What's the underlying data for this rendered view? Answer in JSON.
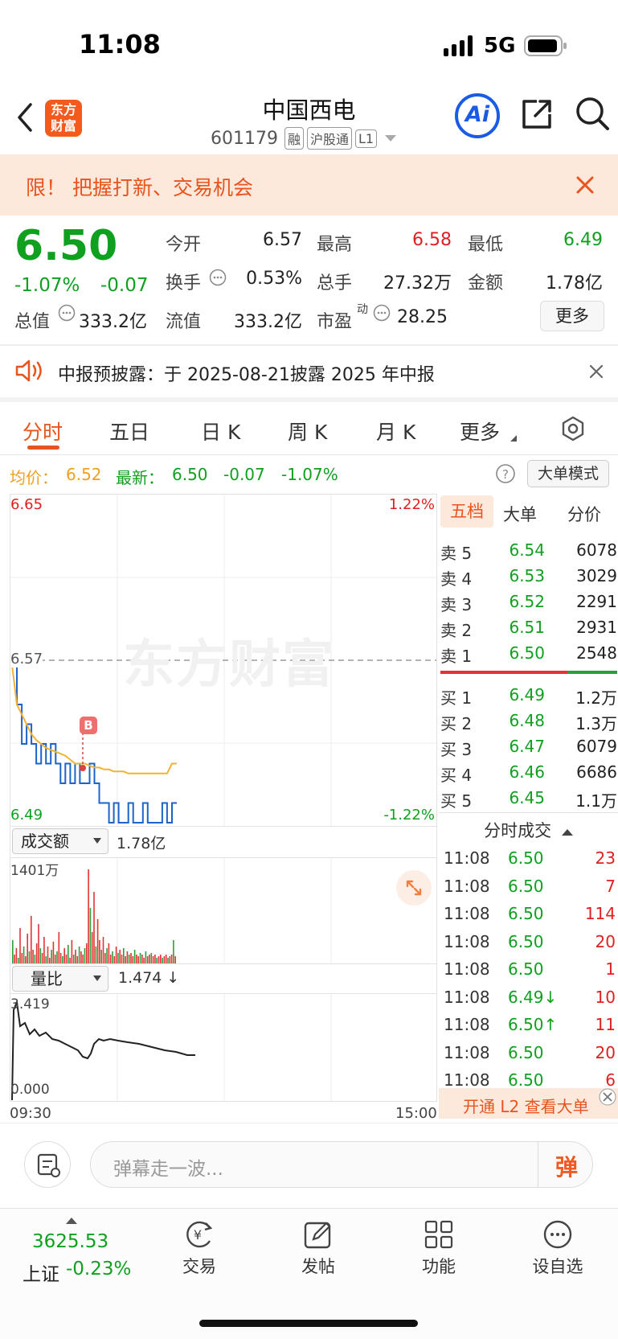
{
  "status_bar": {
    "time": "11:08",
    "network": "5G"
  },
  "header": {
    "logo_text_1": "东方",
    "logo_text_2": "财富",
    "title": "中国西电",
    "code": "601179",
    "badge_rong": "融",
    "badge_hgt": "沪股通",
    "badge_l1": "L1",
    "ai_label": "Ai"
  },
  "promo": {
    "text": "限！ 把握打新、交易机会"
  },
  "quote": {
    "price": "6.50",
    "change_pct": "-1.07%",
    "change": "-0.07",
    "open_label": "今开",
    "open": "6.57",
    "high_label": "最高",
    "high": "6.58",
    "low_label": "最低",
    "low": "6.49",
    "turnover_label": "换手",
    "turnover": "0.53%",
    "volume_label": "总手",
    "volume": "27.32万",
    "amount_label": "金额",
    "amount": "1.78亿",
    "mktcap_label": "总值",
    "mktcap": "333.2亿",
    "float_label": "流值",
    "float": "333.2亿",
    "pe_label": "市盈",
    "pe_sup": "动",
    "pe": "28.25",
    "more_button": "更多"
  },
  "notice": {
    "text": "中报预披露：于 2025-08-21披露 2025 年中报"
  },
  "tabs": [
    "分时",
    "五日",
    "日 K",
    "周 K",
    "月 K",
    "更多"
  ],
  "info_line": {
    "avg_label": "均价：",
    "avg": "6.52",
    "latest_label": "最新：",
    "latest": "6.50",
    "change": "-0.07",
    "change_pct": "-1.07%",
    "mode_button": "大单模式"
  },
  "chart_labels": {
    "top_left": "6.65",
    "top_right": "1.22%",
    "mid": "6.57",
    "bottom_left": "6.49",
    "bottom_right": "-1.22%",
    "watermark": "东方财富",
    "volume_selector": "成交额",
    "volume_value": "1.78亿",
    "volume_max": "1401万",
    "ratio_selector": "量比",
    "ratio_value": "1.474 ↓",
    "ratio_max": "3.419",
    "ratio_min": "0.000",
    "time_start": "09:30",
    "time_end": "15:00"
  },
  "chart_data": {
    "type": "line",
    "x_range": [
      "09:30",
      "15:00"
    ],
    "ylim": [
      6.49,
      6.65
    ],
    "series": [
      {
        "name": "最新",
        "values": [
          6.57,
          6.55,
          6.53,
          6.54,
          6.53,
          6.52,
          6.53,
          6.52,
          6.53,
          6.52,
          6.51,
          6.52,
          6.51,
          6.52,
          6.51,
          6.51,
          6.52,
          6.51,
          6.5,
          6.5,
          6.49,
          6.5,
          6.49,
          6.49,
          6.5,
          6.49,
          6.49,
          6.5,
          6.49,
          6.49,
          6.49,
          6.5,
          6.49,
          6.5,
          6.5
        ]
      },
      {
        "name": "均价",
        "values": [
          6.57,
          6.55,
          6.545,
          6.54,
          6.535,
          6.532,
          6.53,
          6.528,
          6.527,
          6.526,
          6.525,
          6.524,
          6.522,
          6.52,
          6.52,
          6.52,
          6.519,
          6.518,
          6.518,
          6.517,
          6.517,
          6.516,
          6.516,
          6.516,
          6.515,
          6.515,
          6.515,
          6.515,
          6.515,
          6.515,
          6.515,
          6.515,
          6.515,
          6.52,
          6.52
        ]
      }
    ]
  },
  "order_book": {
    "tabs": [
      "五档",
      "大单",
      "分价"
    ],
    "sell": [
      {
        "label": "卖 5",
        "price": "6.54",
        "vol": "6078"
      },
      {
        "label": "卖 4",
        "price": "6.53",
        "vol": "3029"
      },
      {
        "label": "卖 3",
        "price": "6.52",
        "vol": "2291"
      },
      {
        "label": "卖 2",
        "price": "6.51",
        "vol": "2931"
      },
      {
        "label": "卖 1",
        "price": "6.50",
        "vol": "2548"
      }
    ],
    "buy": [
      {
        "label": "买 1",
        "price": "6.49",
        "vol": "1.2万"
      },
      {
        "label": "买 2",
        "price": "6.48",
        "vol": "1.3万"
      },
      {
        "label": "买 3",
        "price": "6.47",
        "vol": "6079"
      },
      {
        "label": "买 4",
        "price": "6.46",
        "vol": "6686"
      },
      {
        "label": "买 5",
        "price": "6.45",
        "vol": "1.1万"
      }
    ]
  },
  "ticks": {
    "title": "分时成交",
    "rows": [
      {
        "time": "11:08",
        "price": "6.50",
        "vol": "23"
      },
      {
        "time": "11:08",
        "price": "6.50",
        "vol": "7"
      },
      {
        "time": "11:08",
        "price": "6.50",
        "vol": "114"
      },
      {
        "time": "11:08",
        "price": "6.50",
        "vol": "20"
      },
      {
        "time": "11:08",
        "price": "6.50",
        "vol": "1"
      },
      {
        "time": "11:08",
        "price": "6.49↓",
        "vol": "10"
      },
      {
        "time": "11:08",
        "price": "6.50↑",
        "vol": "11"
      },
      {
        "time": "11:08",
        "price": "6.50",
        "vol": "20"
      },
      {
        "time": "11:08",
        "price": "6.50",
        "vol": "6"
      }
    ],
    "l2_banner": "开通 L2 查看大单"
  },
  "comment_bar": {
    "placeholder": "弹幕走一波...",
    "danmu_label": "弹"
  },
  "bottom_nav": {
    "index_value": "3625.53",
    "index_name": "上证",
    "index_change": "-0.23%",
    "trade": "交易",
    "post": "发帖",
    "function": "功能",
    "watchlist": "设自选"
  }
}
